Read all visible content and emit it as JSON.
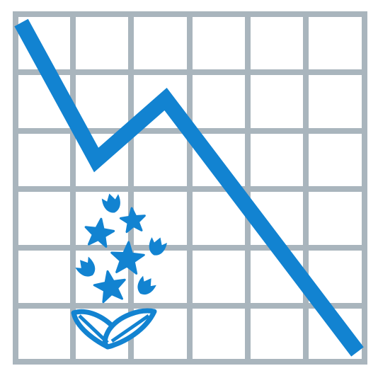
{
  "colors": {
    "background": "#ffffff",
    "grid": "#a9b5bd",
    "accent": "#1283d1"
  },
  "icons": {
    "trend": "downward-trend-line-icon",
    "plant": "bluebonnet-flower-icon"
  }
}
